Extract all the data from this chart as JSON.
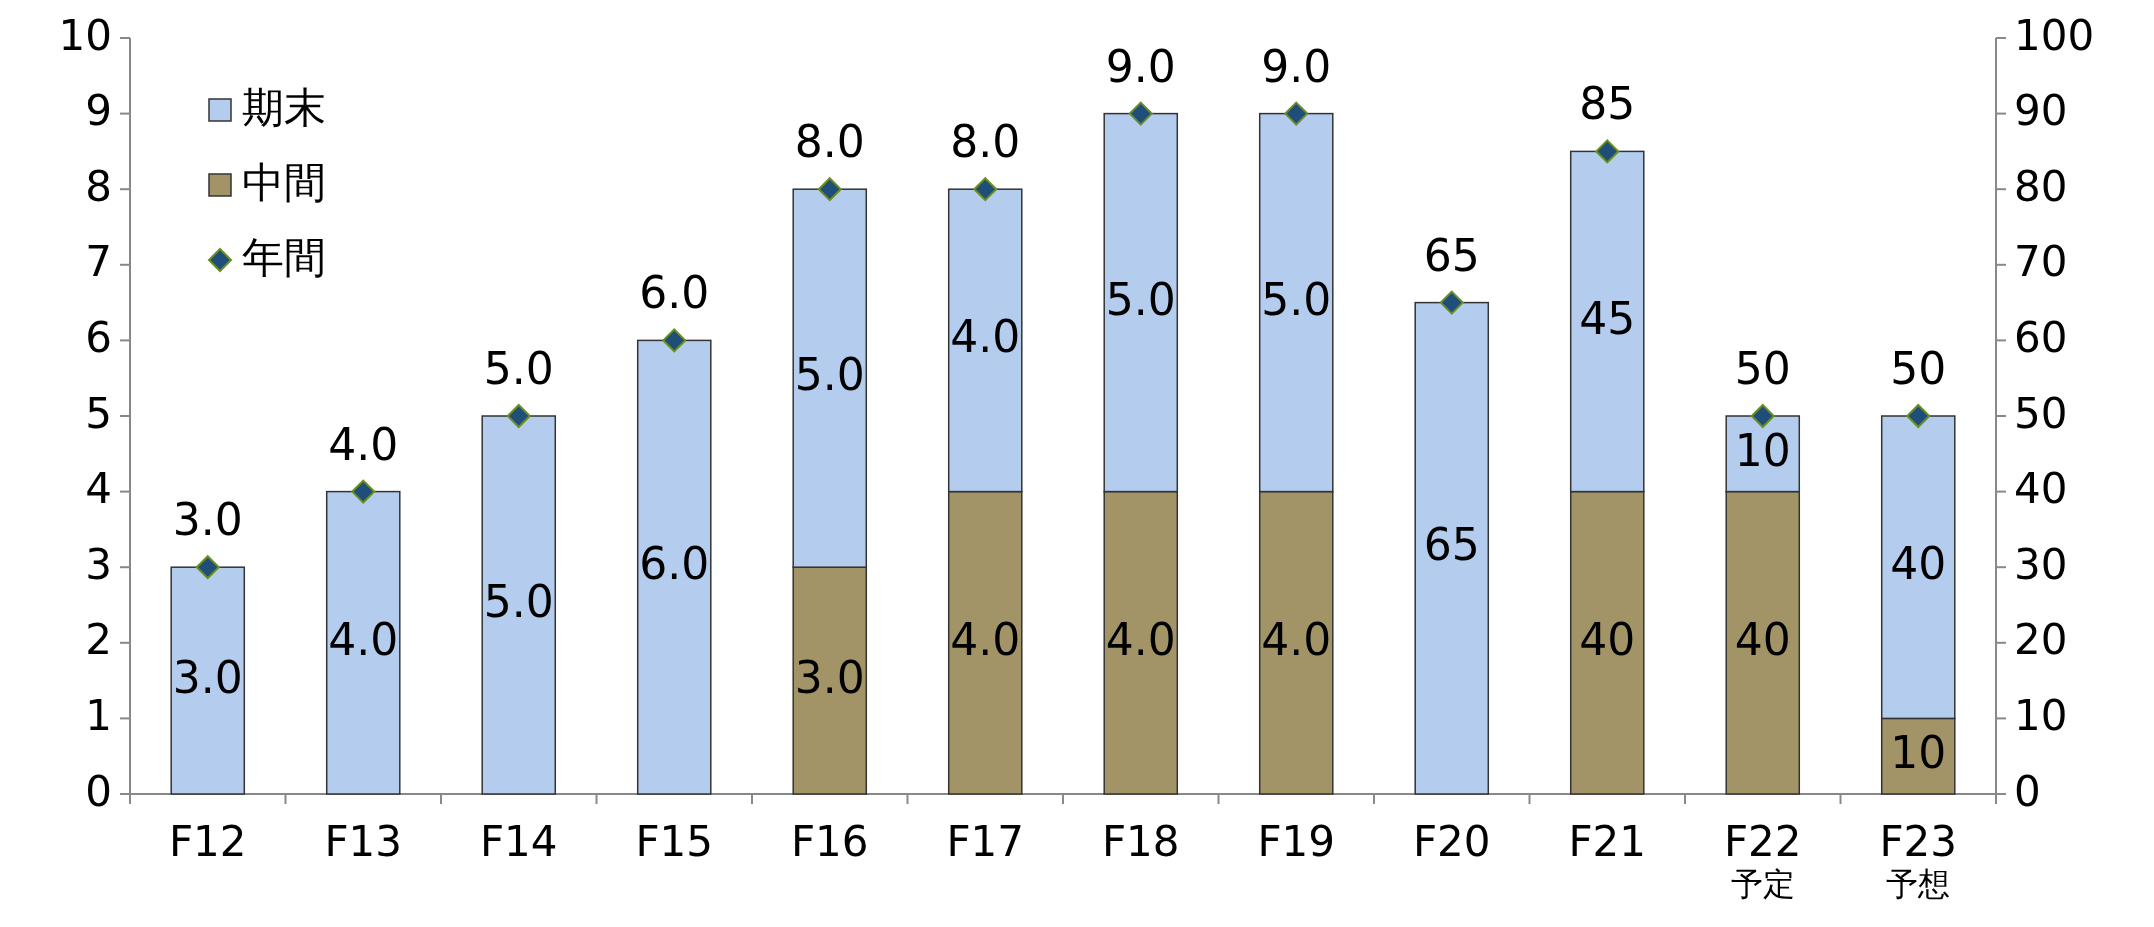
{
  "chart_data": {
    "type": "bar",
    "stacked": true,
    "categories": [
      "F12",
      "F13",
      "F14",
      "F15",
      "F16",
      "F17",
      "F18",
      "F19",
      "F20",
      "F21",
      "F22\n予定",
      "F23\n予想"
    ],
    "series": [
      {
        "name": "中間",
        "color": "#a39468",
        "values": [
          null,
          null,
          null,
          null,
          3.0,
          4.0,
          4.0,
          4.0,
          null,
          null,
          null,
          null
        ],
        "value_labels": [
          null,
          null,
          null,
          null,
          "3.0",
          "4.0",
          "4.0",
          "4.0",
          null,
          null,
          null,
          null
        ]
      },
      {
        "name": "期末",
        "color": "#b4cdee",
        "values": [
          3.0,
          4.0,
          5.0,
          6.0,
          5.0,
          4.0,
          5.0,
          5.0,
          null,
          null,
          null,
          null
        ],
        "value_labels": [
          "3.0",
          "4.0",
          "5.0",
          "6.0",
          "5.0",
          "4.0",
          "5.0",
          "5.0",
          null,
          null,
          null,
          null
        ]
      },
      {
        "color": "#a39468",
        "axis": "y2",
        "values": [
          null,
          null,
          null,
          null,
          null,
          null,
          null,
          null,
          null,
          40,
          40,
          10
        ],
        "value_labels": [
          null,
          null,
          null,
          null,
          null,
          null,
          null,
          null,
          null,
          "40",
          "40",
          "10"
        ]
      },
      {
        "color": "#b4cdee",
        "axis": "y2",
        "values": [
          null,
          null,
          null,
          null,
          null,
          null,
          null,
          null,
          65,
          45,
          10,
          40
        ],
        "value_labels": [
          null,
          null,
          null,
          null,
          null,
          null,
          null,
          null,
          "65",
          "45",
          "10",
          "40"
        ]
      },
      {
        "name": "年間",
        "type": "scatter",
        "color": "#1f4e79",
        "values": [
          3.0,
          4.0,
          5.0,
          6.0,
          8.0,
          8.0,
          9.0,
          9.0,
          null,
          null,
          null,
          null
        ],
        "value_labels": [
          "3.0",
          "4.0",
          "5.0",
          "6.0",
          "8.0",
          "8.0",
          "9.0",
          "9.0",
          null,
          null,
          null,
          null
        ]
      },
      {
        "type": "scatter",
        "color": "#1f4e79",
        "axis": "y2",
        "values": [
          null,
          null,
          null,
          null,
          null,
          null,
          null,
          null,
          65,
          85,
          50,
          50
        ],
        "value_labels": [
          null,
          null,
          null,
          null,
          null,
          null,
          null,
          null,
          "65",
          "85",
          "50",
          "50"
        ]
      }
    ],
    "ylim": [
      0,
      10
    ],
    "yticks": [
      0,
      1,
      2,
      3,
      4,
      5,
      6,
      7,
      8,
      9,
      10
    ],
    "y2lim": [
      0,
      100
    ],
    "y2ticks": [
      0,
      10,
      20,
      30,
      40,
      50,
      60,
      70,
      80,
      90,
      100
    ],
    "legend": "top left",
    "marker": "diamond",
    "grid": false
  }
}
